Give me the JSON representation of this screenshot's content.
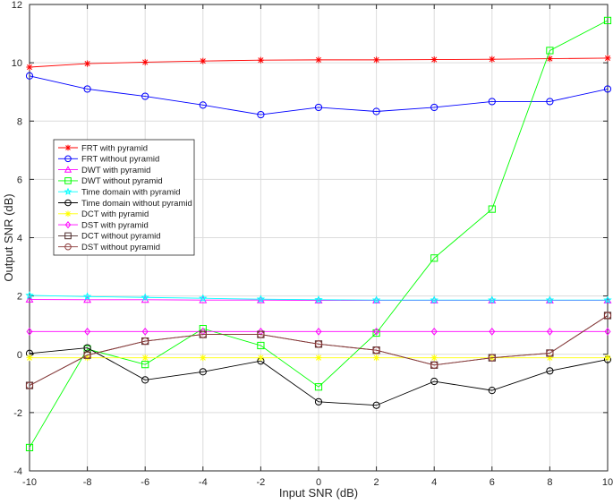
{
  "chart_data": {
    "type": "line",
    "title": "",
    "xlabel": "Input SNR (dB)",
    "ylabel": "Output SNR (dB)",
    "xlim": [
      -10,
      10
    ],
    "ylim": [
      -4,
      12
    ],
    "grid": true,
    "legend_position": "left-middle",
    "x": [
      -10,
      -8,
      -6,
      -4,
      -2,
      0,
      2,
      4,
      6,
      8,
      10
    ],
    "xticks": [
      "-10",
      "-8",
      "-6",
      "-4",
      "-2",
      "0",
      "2",
      "4",
      "6",
      "8",
      "10"
    ],
    "yticks": [
      "-4",
      "-2",
      "0",
      "2",
      "4",
      "6",
      "8",
      "10",
      "12"
    ],
    "series": [
      {
        "name": "FRT with pyramid",
        "color": "#ff0000",
        "marker": "asterisk",
        "values": [
          9.85,
          9.97,
          10.02,
          10.06,
          10.09,
          10.1,
          10.1,
          10.11,
          10.12,
          10.14,
          10.16
        ]
      },
      {
        "name": "FRT without pyramid",
        "color": "#0000ff",
        "marker": "circle",
        "values": [
          9.55,
          9.1,
          8.85,
          8.55,
          8.22,
          8.47,
          8.33,
          8.47,
          8.67,
          8.67,
          9.1
        ]
      },
      {
        "name": "DWT with pyramid",
        "color": "#ff00ff",
        "marker": "triangle",
        "values": [
          1.88,
          1.87,
          1.87,
          1.86,
          1.86,
          1.85,
          1.85,
          1.85,
          1.85,
          1.85,
          1.85
        ]
      },
      {
        "name": "DWT without pyramid",
        "color": "#00ff00",
        "marker": "square",
        "values": [
          -3.2,
          0.18,
          -0.35,
          0.88,
          0.3,
          -1.12,
          0.73,
          3.3,
          4.98,
          10.42,
          11.45
        ]
      },
      {
        "name": "Time domain with pyramid",
        "color": "#00ffff",
        "marker": "star",
        "values": [
          2.02,
          1.98,
          1.95,
          1.92,
          1.89,
          1.87,
          1.86,
          1.86,
          1.86,
          1.86,
          1.86
        ]
      },
      {
        "name": "Time domain without pyramid",
        "color": "#000000",
        "marker": "circle",
        "values": [
          0.03,
          0.22,
          -0.88,
          -0.6,
          -0.23,
          -1.63,
          -1.75,
          -0.93,
          -1.24,
          -0.57,
          -0.18
        ]
      },
      {
        "name": "DCT with pyramid",
        "color": "#ffff00",
        "marker": "asterisk",
        "values": [
          -0.12,
          -0.12,
          -0.12,
          -0.12,
          -0.12,
          -0.12,
          -0.12,
          -0.12,
          -0.12,
          -0.12,
          -0.12
        ]
      },
      {
        "name": "DST with pyramid",
        "color": "#ff00ff",
        "marker": "diamond",
        "values": [
          0.78,
          0.78,
          0.78,
          0.78,
          0.78,
          0.78,
          0.78,
          0.78,
          0.78,
          0.78,
          0.78
        ]
      },
      {
        "name": "DCT without pyramid",
        "color": "#4d2b2b",
        "marker": "square",
        "values": [
          -1.07,
          -0.03,
          0.45,
          0.68,
          0.68,
          0.35,
          0.14,
          -0.37,
          -0.12,
          0.04,
          1.33
        ]
      },
      {
        "name": "DST without pyramid",
        "color": "#8c3a3a",
        "marker": "circle",
        "values": [
          -1.07,
          -0.03,
          0.45,
          0.68,
          0.68,
          0.35,
          0.14,
          -0.37,
          -0.12,
          0.04,
          1.33
        ]
      }
    ]
  }
}
